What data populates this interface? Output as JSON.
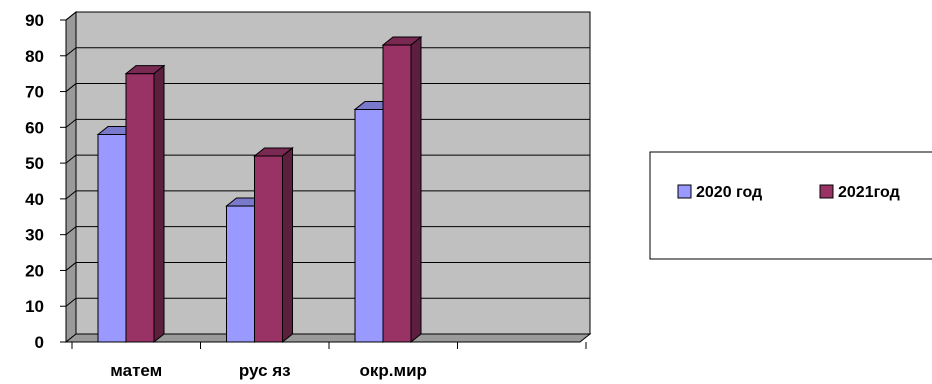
{
  "chart_data": {
    "type": "bar",
    "categories": [
      "матем",
      "рус яз",
      "окр.мир"
    ],
    "series": [
      {
        "name": "2020 год",
        "values": [
          58,
          38,
          65
        ],
        "color": "#9999ff"
      },
      {
        "name": "2021год",
        "values": [
          75,
          52,
          83
        ],
        "color": "#993366"
      }
    ],
    "y_ticks": [
      "0",
      "10",
      "20",
      "30",
      "40",
      "50",
      "60",
      "70",
      "80",
      "90"
    ],
    "ylim": [
      0,
      90
    ],
    "empty_category_slots": 1,
    "title": "",
    "xlabel": "",
    "ylabel": "",
    "grid": true,
    "style": "3d-clustered-bar",
    "wall_color": "#c0c0c0",
    "legend_position": "right"
  }
}
